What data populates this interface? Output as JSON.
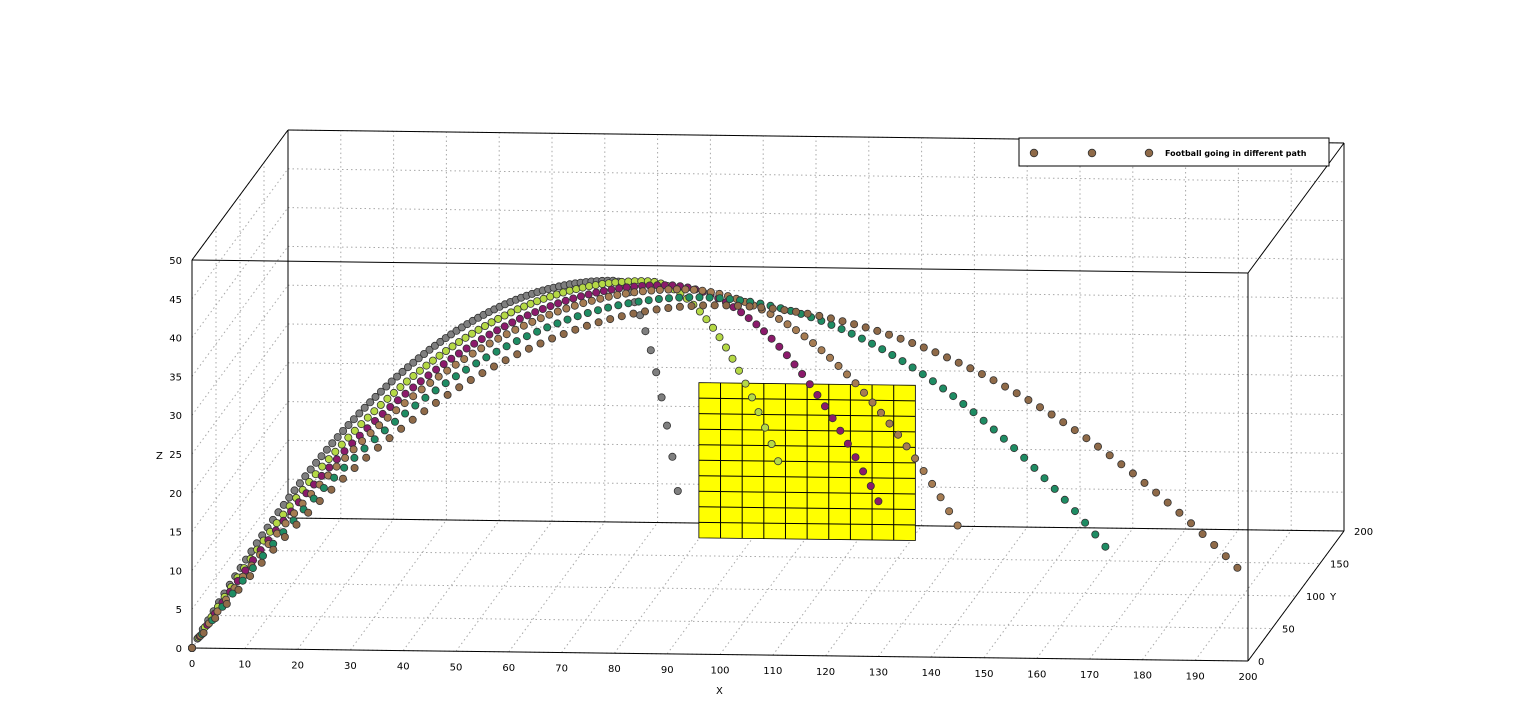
{
  "chart_data": {
    "type": "scatter",
    "title": "",
    "xlabel": "X",
    "ylabel": "Y",
    "zlabel": "Z",
    "xlim": [
      0,
      200
    ],
    "ylim": [
      0,
      200
    ],
    "zlim": [
      0,
      50
    ],
    "x_ticks": [
      "0",
      "10",
      "20",
      "30",
      "40",
      "50",
      "60",
      "70",
      "80",
      "90",
      "100",
      "110",
      "120",
      "130",
      "140",
      "150",
      "160",
      "170",
      "180",
      "190",
      "200"
    ],
    "y_ticks": [
      "0",
      "50",
      "100",
      "150",
      "200"
    ],
    "z_ticks": [
      "0",
      "5",
      "10",
      "15",
      "20",
      "25",
      "30",
      "35",
      "40",
      "45",
      "50"
    ],
    "grid": true,
    "legend": {
      "position": "top-right",
      "entries": [
        "",
        "",
        "Football going in different path"
      ]
    },
    "series": [
      {
        "color": "#7f7f7f",
        "start": [
          0,
          0,
          0
        ],
        "apex": [
          80,
          48
        ],
        "end": [
          92,
          21
        ]
      },
      {
        "color": "#b5d945",
        "start": [
          0,
          0,
          0
        ],
        "apex": [
          86,
          48
        ],
        "end": [
          111,
          25
        ]
      },
      {
        "color": "#8b1a6b",
        "start": [
          0,
          0,
          0
        ],
        "apex": [
          90,
          47.5
        ],
        "end": [
          130,
          20
        ]
      },
      {
        "color": "#a67c52",
        "start": [
          0,
          0,
          0
        ],
        "apex": [
          93,
          47
        ],
        "end": [
          145,
          17
        ]
      },
      {
        "color": "#1e8c63",
        "start": [
          0,
          0,
          0
        ],
        "apex": [
          96,
          46
        ],
        "end": [
          173,
          14.5
        ]
      },
      {
        "color": "#8f6a48",
        "start": [
          0,
          0,
          0
        ],
        "apex": [
          100,
          45
        ],
        "end": [
          198,
          12
        ]
      }
    ],
    "goal": {
      "color": "#ffff00",
      "x_range": [
        96,
        137
      ],
      "z_range": [
        15,
        35
      ]
    }
  }
}
